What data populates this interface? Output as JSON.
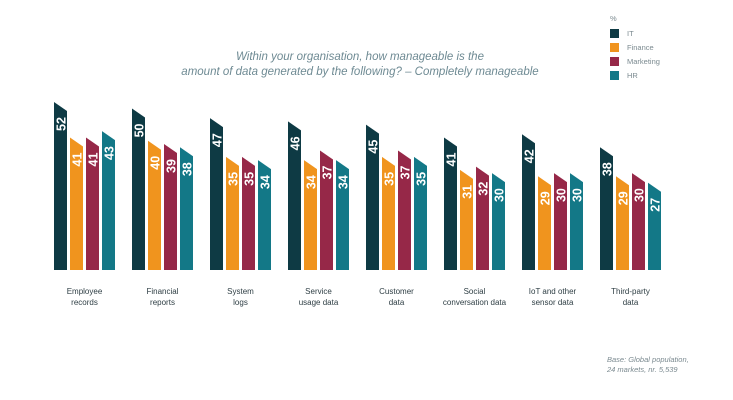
{
  "chart_data": {
    "type": "bar",
    "title_line1": "Within your organisation, how manageable is the",
    "title_line2": "amount of data generated by the following? – Completely manageable",
    "unit": "%",
    "categories": [
      [
        "Employee",
        "records"
      ],
      [
        "Financial",
        "reports"
      ],
      [
        "System",
        "logs"
      ],
      [
        "Service",
        "usage data"
      ],
      [
        "Customer",
        "data"
      ],
      [
        "Social",
        "conversation data"
      ],
      [
        "IoT and other",
        "sensor data"
      ],
      [
        "Third-party",
        "data"
      ]
    ],
    "series": [
      {
        "name": "IT",
        "color": "#0e3a44",
        "values": [
          52,
          50,
          47,
          46,
          45,
          41,
          42,
          38
        ]
      },
      {
        "name": "Finance",
        "color": "#f0941e",
        "values": [
          41,
          40,
          35,
          34,
          35,
          31,
          29,
          29
        ]
      },
      {
        "name": "Marketing",
        "color": "#962848",
        "values": [
          41,
          39,
          35,
          37,
          37,
          32,
          30,
          30
        ]
      },
      {
        "name": "HR",
        "color": "#137887",
        "values": [
          43,
          38,
          34,
          34,
          35,
          30,
          30,
          27
        ]
      }
    ],
    "ylim": [
      0,
      52
    ],
    "legend": "top-right",
    "grid": false
  },
  "footnote_line1": "Base: Global population,",
  "footnote_line2": "24 markets, nr. 5,539"
}
